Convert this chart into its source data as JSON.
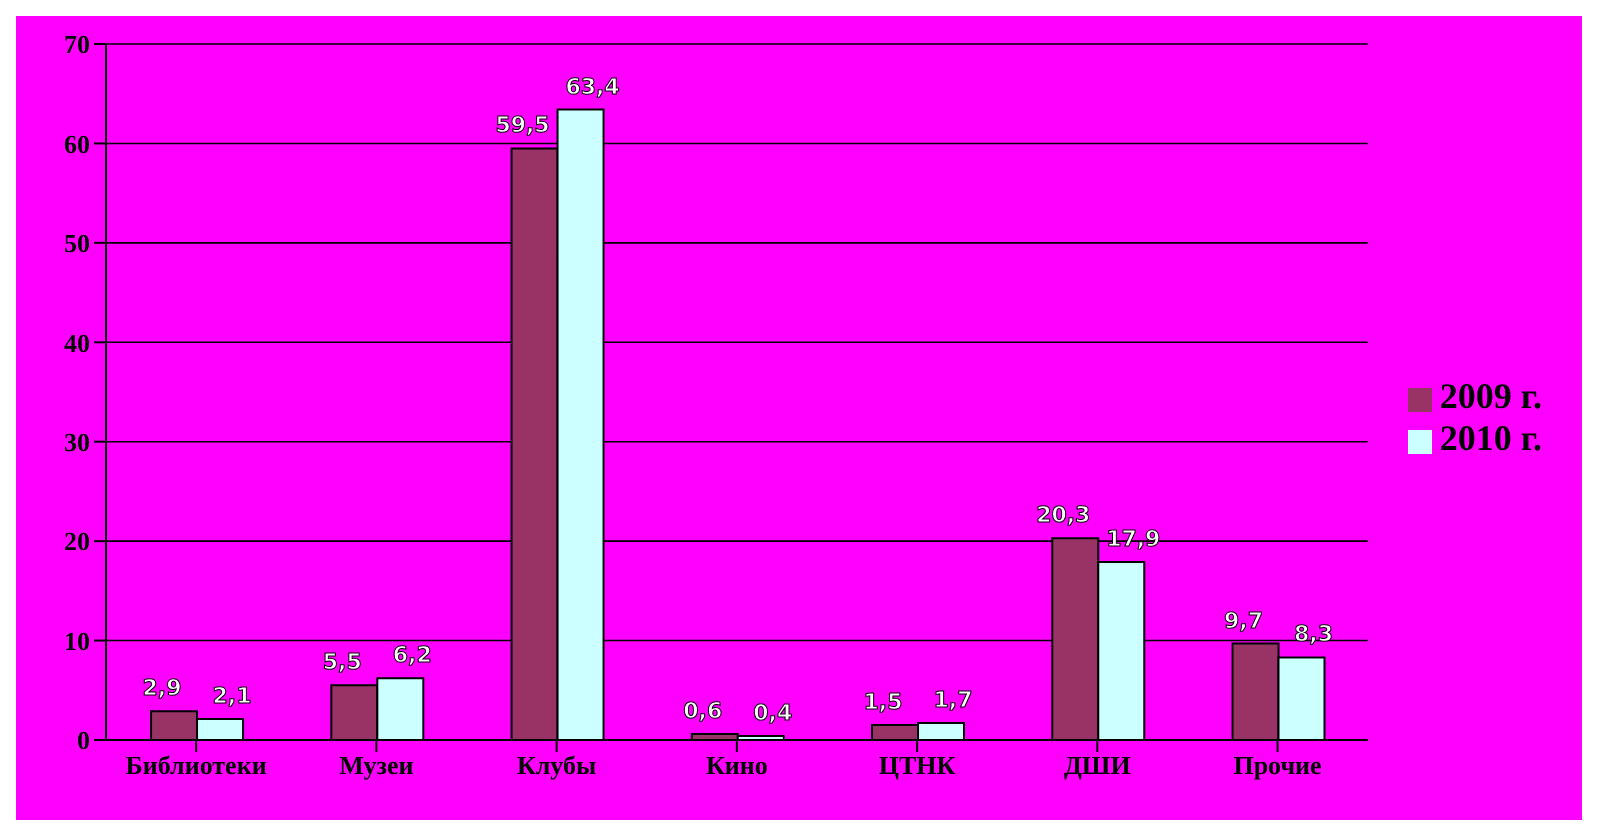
{
  "chart_data": {
    "type": "bar",
    "categories": [
      "Библиотеки",
      "Музеи",
      "Клубы",
      "Кино",
      "ЦТНК",
      "ДШИ",
      "Прочие"
    ],
    "series": [
      {
        "name": "2009 г.",
        "color": "#993366",
        "values": [
          2.9,
          5.5,
          59.5,
          0.6,
          1.5,
          20.3,
          9.7
        ],
        "value_labels": [
          "2,9",
          "5,5",
          "59,5",
          "0,6",
          "1,5",
          "20,3",
          "9,7"
        ]
      },
      {
        "name": "2010 г.",
        "color": "#ccffff",
        "values": [
          2.1,
          6.2,
          63.4,
          0.4,
          1.7,
          17.9,
          8.3
        ],
        "value_labels": [
          "2,1",
          "6,2",
          "63,4",
          "0,4",
          "1,7",
          "17,9",
          "8,3"
        ]
      }
    ],
    "ylim": [
      0,
      70
    ],
    "yticks": [
      0,
      10,
      20,
      30,
      40,
      50,
      60,
      70
    ],
    "grid": "y",
    "legend": "right"
  }
}
